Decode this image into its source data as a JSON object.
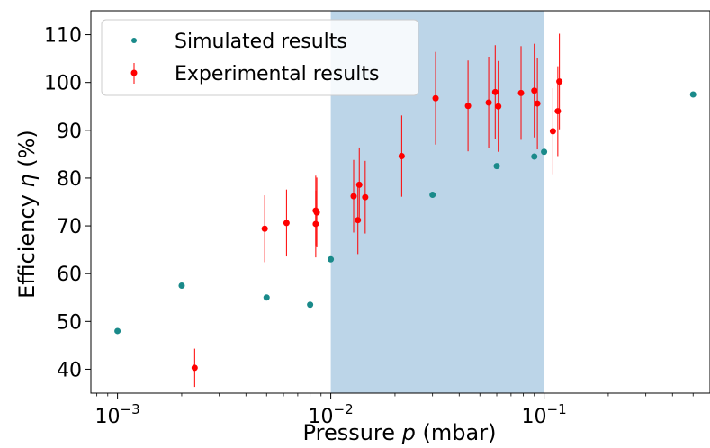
{
  "chart_data": {
    "type": "scatter",
    "title": "",
    "xlabel": "Pressure p (mbar)",
    "ylabel": "Efficiency η (%)",
    "xscale": "log",
    "xlim": [
      0.00075,
      0.6
    ],
    "ylim": [
      35,
      115
    ],
    "grid": false,
    "legend_position": "top-left",
    "x_ticks": [
      {
        "value": 0.001,
        "base": "10",
        "exp": "−3"
      },
      {
        "value": 0.01,
        "base": "10",
        "exp": "−2"
      },
      {
        "value": 0.1,
        "base": "10",
        "exp": "−1"
      }
    ],
    "y_ticks": [
      40,
      50,
      60,
      70,
      80,
      90,
      100,
      110
    ],
    "shaded_region": {
      "x_start": 0.01,
      "x_end": 0.1,
      "color": "#bcd5e8"
    },
    "series": [
      {
        "name": "Simulated results",
        "marker": "point",
        "color": "#1a8a8a",
        "points": [
          {
            "x": 0.001,
            "y": 48
          },
          {
            "x": 0.002,
            "y": 57.5
          },
          {
            "x": 0.005,
            "y": 55
          },
          {
            "x": 0.008,
            "y": 53.5
          },
          {
            "x": 0.01,
            "y": 63
          },
          {
            "x": 0.03,
            "y": 76.5
          },
          {
            "x": 0.06,
            "y": 82.5
          },
          {
            "x": 0.09,
            "y": 84.5
          },
          {
            "x": 0.1,
            "y": 85.5
          },
          {
            "x": 0.5,
            "y": 97.5
          }
        ]
      },
      {
        "name": "Experimental results",
        "marker": "point-errorbar",
        "color": "#ff0000",
        "points": [
          {
            "x": 0.0023,
            "y": 40.3,
            "err": 4
          },
          {
            "x": 0.0049,
            "y": 69.4,
            "err": 7
          },
          {
            "x": 0.0062,
            "y": 70.6,
            "err": 7
          },
          {
            "x": 0.0085,
            "y": 70.4,
            "err": 7
          },
          {
            "x": 0.0085,
            "y": 73.2,
            "err": 7.3
          },
          {
            "x": 0.0086,
            "y": 72.8,
            "err": 7.3
          },
          {
            "x": 0.0128,
            "y": 76.2,
            "err": 7.6
          },
          {
            "x": 0.0134,
            "y": 71.2,
            "err": 7.1
          },
          {
            "x": 0.0136,
            "y": 78.6,
            "err": 7.8
          },
          {
            "x": 0.0145,
            "y": 76.0,
            "err": 7.6
          },
          {
            "x": 0.0215,
            "y": 84.6,
            "err": 8.5
          },
          {
            "x": 0.031,
            "y": 96.7,
            "err": 9.7
          },
          {
            "x": 0.044,
            "y": 95.1,
            "err": 9.5
          },
          {
            "x": 0.055,
            "y": 95.8,
            "err": 9.6
          },
          {
            "x": 0.059,
            "y": 98.0,
            "err": 9.8
          },
          {
            "x": 0.061,
            "y": 95.0,
            "err": 9.5
          },
          {
            "x": 0.078,
            "y": 97.8,
            "err": 9.8
          },
          {
            "x": 0.09,
            "y": 98.3,
            "err": 9.8
          },
          {
            "x": 0.093,
            "y": 95.6,
            "err": 9.6
          },
          {
            "x": 0.11,
            "y": 89.8,
            "err": 9
          },
          {
            "x": 0.116,
            "y": 94.0,
            "err": 9.4
          },
          {
            "x": 0.118,
            "y": 100.2,
            "err": 10
          }
        ]
      }
    ]
  }
}
